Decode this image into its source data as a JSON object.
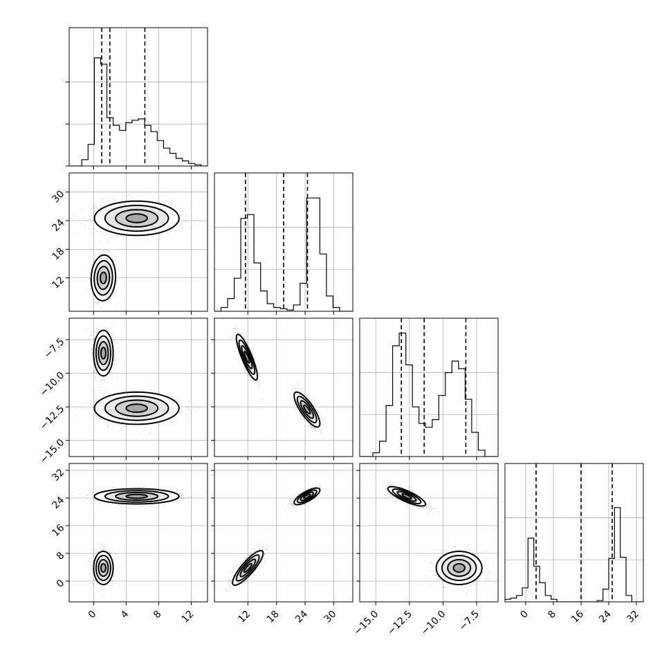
{
  "chart_data": {
    "type": "corner",
    "parameters": [
      {
        "range": [
          -3,
          14
        ],
        "ticks": [
          0,
          4,
          8,
          12
        ],
        "ticklabels": [
          "0",
          "4",
          "8",
          "12"
        ],
        "quantiles": [
          1.0,
          2.0,
          6.3
        ]
      },
      {
        "range": [
          5,
          34
        ],
        "ticks": [
          12,
          18,
          24,
          30
        ],
        "ticklabels": [
          "12",
          "18",
          "24",
          "30"
        ],
        "quantiles": [
          11.5,
          19.5,
          24.5
        ]
      },
      {
        "range": [
          -16.2,
          -5.9
        ],
        "ticks": [
          -15.0,
          -12.5,
          -10.0,
          -7.5
        ],
        "ticklabels": [
          "−15.0",
          "−12.5",
          "−10.0",
          "−7.5"
        ],
        "quantiles": [
          -13.1,
          -11.4,
          -8.3
        ]
      },
      {
        "range": [
          -6,
          34
        ],
        "ticks": [
          0,
          8,
          16,
          24,
          32
        ],
        "ticklabels": [
          "0",
          "8",
          "16",
          "24",
          "32"
        ],
        "quantiles": [
          3.0,
          16.0,
          25.0
        ]
      }
    ],
    "histograms": [
      [
        0.0,
        0.0,
        0.05,
        0.17,
        0.85,
        0.8,
        0.38,
        0.32,
        0.28,
        0.34,
        0.36,
        0.37,
        0.32,
        0.27,
        0.2,
        0.14,
        0.1,
        0.06,
        0.04,
        0.02,
        0.01,
        0.0
      ],
      [
        0.0,
        0.03,
        0.1,
        0.26,
        0.73,
        0.76,
        0.38,
        0.16,
        0.06,
        0.03,
        0.02,
        0.01,
        0.05,
        0.22,
        0.89,
        0.89,
        0.45,
        0.12,
        0.03,
        0.0,
        0.0
      ],
      [
        0.0,
        0.0,
        0.03,
        0.12,
        0.4,
        0.87,
        0.97,
        0.72,
        0.39,
        0.26,
        0.23,
        0.29,
        0.48,
        0.66,
        0.75,
        0.69,
        0.45,
        0.19,
        0.05,
        0.0,
        0.0
      ],
      [
        0.02,
        0.03,
        0.05,
        0.11,
        0.5,
        0.28,
        0.15,
        0.05,
        0.02,
        0.0,
        0.0,
        0.0,
        0.0,
        0.0,
        0.0,
        0.0,
        0.01,
        0.1,
        0.34,
        0.74,
        0.35,
        0.05,
        0.0,
        0.0
      ]
    ],
    "modes": [
      [
        [
          [
            1.2,
            12.0
          ],
          [
            0.75,
            2.4
          ],
          0.06,
          0.45
        ],
        [
          [
            5.3,
            24.5
          ],
          [
            2.6,
            1.8
          ],
          0.0,
          0.55
        ]
      ],
      [
        [
          [
            1.2,
            -8.5
          ],
          [
            0.6,
            0.85
          ],
          0.0,
          0.5
        ],
        [
          [
            5.3,
            -12.6
          ],
          [
            2.6,
            0.6
          ],
          0.0,
          0.5
        ]
      ],
      [
        [
          [
            1.2,
            3.8
          ],
          [
            0.6,
            2.4
          ],
          0.0,
          0.45
        ],
        [
          [
            5.3,
            24.5
          ],
          [
            2.6,
            1.1
          ],
          0.0,
          0.55
        ]
      ],
      [
        [
          [
            11.8,
            -8.8
          ],
          [
            1.1,
            0.85
          ],
          -0.85,
          0.5
        ],
        [
          [
            24.4,
            -12.7
          ],
          [
            1.35,
            0.65
          ],
          -0.8,
          0.5
        ]
      ],
      [
        [
          [
            12.0,
            3.8
          ],
          [
            1.6,
            2.5
          ],
          0.85,
          0.45
        ],
        [
          [
            24.4,
            24.5
          ],
          [
            1.35,
            1.2
          ],
          0.75,
          0.55
        ]
      ],
      [
        [
          [
            -12.7,
            24.5
          ],
          [
            0.7,
            1.4
          ],
          -0.8,
          0.55
        ],
        [
          [
            -8.8,
            3.8
          ],
          [
            0.85,
            2.4
          ],
          0.0,
          0.45
        ]
      ]
    ],
    "grid": true
  }
}
